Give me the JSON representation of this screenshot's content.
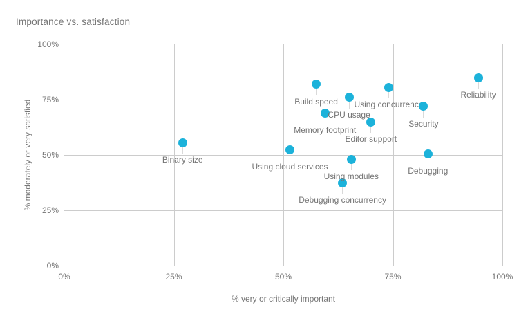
{
  "chart_data": {
    "type": "scatter",
    "title": "Importance vs. satisfaction",
    "xlabel": "% very or critically important",
    "ylabel": "% moderately or very satisfied",
    "xlim": [
      0,
      100
    ],
    "ylim": [
      0,
      100
    ],
    "xticks": [
      "0%",
      "25%",
      "50%",
      "75%",
      "100%"
    ],
    "yticks": [
      "0%",
      "25%",
      "50%",
      "75%",
      "100%"
    ],
    "grid": true,
    "legend": false,
    "colors": {
      "point": "#1cb2da",
      "title_text": "#757575",
      "tick_text": "#757575",
      "point_label_text": "#757575",
      "axis_line": "#333333",
      "grid_line": "#cccccc",
      "leader_line": "#d9d9d9",
      "background": "#ffffff"
    },
    "points": [
      {
        "label": "Binary size",
        "x": 27,
        "y": 55.5
      },
      {
        "label": "Using cloud services",
        "x": 51.5,
        "y": 52.5
      },
      {
        "label": "Build speed",
        "x": 57.5,
        "y": 82
      },
      {
        "label": "Memory footprint",
        "x": 59.5,
        "y": 69
      },
      {
        "label": "Debugging concurrency",
        "x": 63.5,
        "y": 37.5
      },
      {
        "label": "CPU usage",
        "x": 65,
        "y": 76
      },
      {
        "label": "Using modules",
        "x": 65.5,
        "y": 48
      },
      {
        "label": "Editor support",
        "x": 70,
        "y": 65
      },
      {
        "label": "Using concurrency",
        "x": 74,
        "y": 80.5
      },
      {
        "label": "Security",
        "x": 82,
        "y": 72
      },
      {
        "label": "Debugging",
        "x": 83,
        "y": 50.5
      },
      {
        "label": "Reliability",
        "x": 94.5,
        "y": 85
      }
    ]
  }
}
